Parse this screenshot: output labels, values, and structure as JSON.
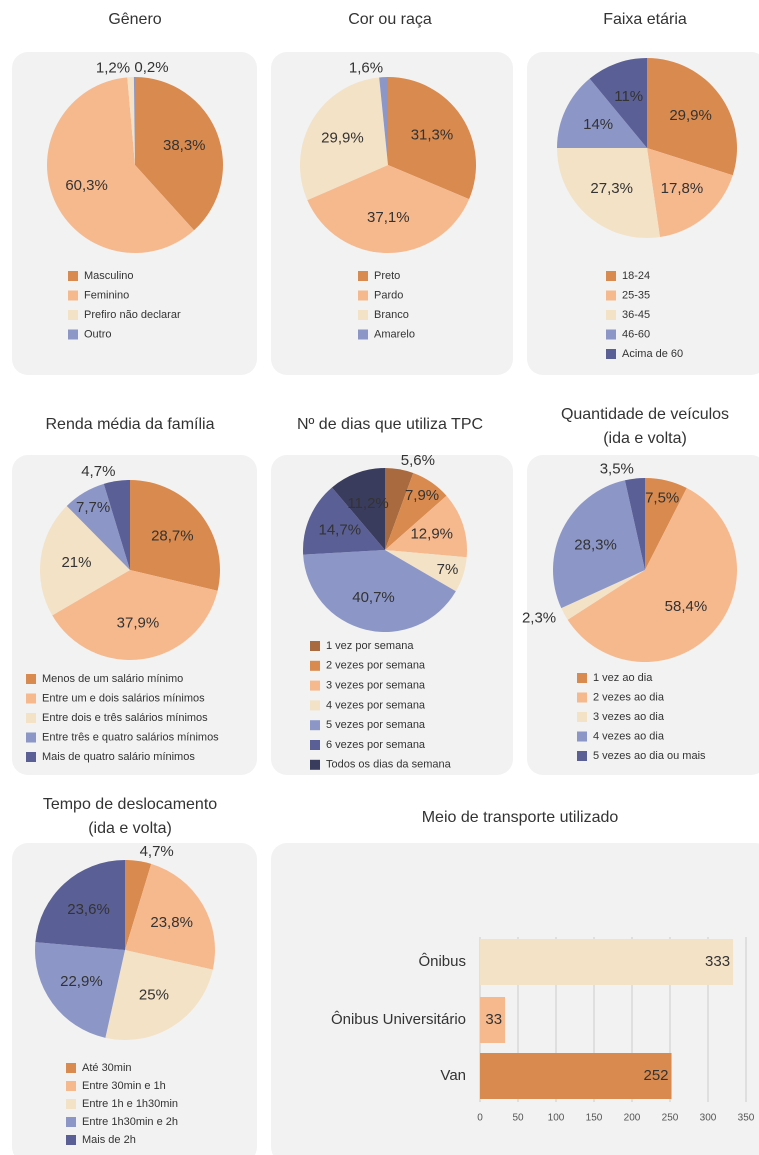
{
  "chart_data": [
    {
      "type": "pie",
      "title": [
        "Gênero"
      ],
      "categories": [
        "Masculino",
        "Feminino",
        "Prefiro não declarar",
        "Outro"
      ],
      "values": [
        38.3,
        60.3,
        1.2,
        0.2
      ],
      "value_labels": [
        "38,3%",
        "60,3%",
        "1,2%",
        "0,2%"
      ],
      "colors": [
        "#d98a4e",
        "#f6b98e",
        "#f3e2c6",
        "#8c97c8"
      ]
    },
    {
      "type": "pie",
      "title": [
        "Cor ou raça"
      ],
      "categories": [
        "Preto",
        "Pardo",
        "Branco",
        "Amarelo"
      ],
      "values": [
        31.3,
        37.1,
        29.9,
        1.6
      ],
      "value_labels": [
        "31,3%",
        "37,1%",
        "29,9%",
        "1,6%"
      ],
      "colors": [
        "#d98a4e",
        "#f6b98e",
        "#f3e2c6",
        "#8c97c8"
      ]
    },
    {
      "type": "pie",
      "title": [
        "Faixa etária"
      ],
      "categories": [
        "18-24",
        "25-35",
        "36-45",
        "46-60",
        "Acima de 60"
      ],
      "values": [
        29.9,
        17.8,
        27.3,
        14,
        11
      ],
      "value_labels": [
        "29,9%",
        "17,8%",
        "27,3%",
        "14%",
        "11%"
      ],
      "colors": [
        "#d98a4e",
        "#f6b98e",
        "#f3e2c6",
        "#8c97c8",
        "#5a5f95"
      ]
    },
    {
      "type": "pie",
      "title": [
        "Renda média da família"
      ],
      "categories": [
        "Menos de um salário mínimo",
        "Entre um e dois salários mínimos",
        "Entre dois e três salários mínimos",
        "Entre três e quatro salários mínimos",
        "Mais de quatro salário mínimos"
      ],
      "values": [
        28.7,
        37.9,
        21,
        7.7,
        4.7
      ],
      "value_labels": [
        "28,7%",
        "37,9%",
        "21%",
        "7,7%",
        "4,7%"
      ],
      "colors": [
        "#d98a4e",
        "#f6b98e",
        "#f3e2c6",
        "#8c97c8",
        "#5a5f95"
      ]
    },
    {
      "type": "pie",
      "title": [
        "Nº de dias que utiliza TPC"
      ],
      "categories": [
        "1 vez por semana",
        "2 vezes por semana",
        "3 vezes por semana",
        "4 vezes por semana",
        "5 vezes por semana",
        "6 vezes por semana",
        "Todos os dias da semana"
      ],
      "values": [
        5.6,
        7.9,
        12.9,
        7,
        40.7,
        14.7,
        11.2
      ],
      "value_labels": [
        "5,6%",
        "7,9%",
        "12,9%",
        "7%",
        "40,7%",
        "14,7%",
        "11,2%"
      ],
      "colors": [
        "#a86a3e",
        "#d98a4e",
        "#f6b98e",
        "#f3e2c6",
        "#8c97c8",
        "#5a5f95",
        "#3a3c5e"
      ]
    },
    {
      "type": "pie",
      "title": [
        "Quantidade de veículos",
        "(ida e volta)"
      ],
      "categories": [
        "1 vez ao dia",
        "2 vezes ao dia",
        "3 vezes ao dia",
        "4 vezes ao dia",
        "5 vezes ao dia ou mais"
      ],
      "values": [
        7.5,
        58.4,
        2.3,
        28.3,
        3.5
      ],
      "value_labels": [
        "7,5%",
        "58,4%",
        "2,3%",
        "28,3%",
        "3,5%"
      ],
      "colors": [
        "#d98a4e",
        "#f6b98e",
        "#f3e2c6",
        "#8c97c8",
        "#5a5f95"
      ]
    },
    {
      "type": "pie",
      "title": [
        "Tempo de deslocamento",
        "(ida e volta)"
      ],
      "categories": [
        "Até 30min",
        "Entre 30min e 1h",
        "Entre 1h e 1h30min",
        "Entre 1h30min e 2h",
        "Mais de 2h"
      ],
      "values": [
        4.7,
        23.8,
        25,
        22.9,
        23.6
      ],
      "value_labels": [
        "4,7%",
        "23,8%",
        "25%",
        "22,9%",
        "23,6%"
      ],
      "colors": [
        "#d98a4e",
        "#f6b98e",
        "#f3e2c6",
        "#8c97c8",
        "#5a5f95"
      ]
    },
    {
      "type": "bar",
      "orientation": "horizontal",
      "title": [
        "Meio de transporte utilizado"
      ],
      "categories": [
        "Ônibus",
        "Ônibus Universitário",
        "Van"
      ],
      "values": [
        333,
        33,
        252
      ],
      "colors": [
        "#f3e2c6",
        "#f6b98e",
        "#d98a4e"
      ],
      "xlim": [
        0,
        350
      ],
      "xticks": [
        0,
        50,
        100,
        150,
        200,
        250,
        300,
        350
      ],
      "grid": true
    }
  ]
}
